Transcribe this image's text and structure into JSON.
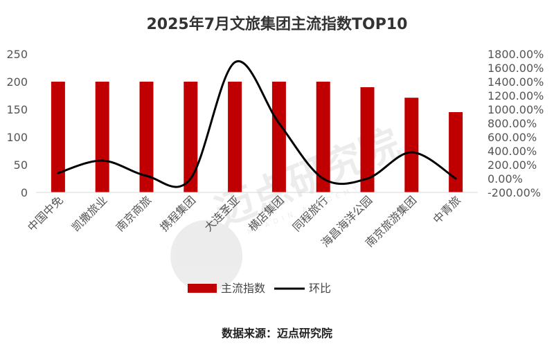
{
  "chart_data": {
    "type": "bar",
    "title": "2025年7月文旅集团主流指数TOP10",
    "categories": [
      "中国中免",
      "凯撒旅业",
      "南京商旅",
      "携程集团",
      "大连圣亚",
      "横店集团",
      "同程旅行",
      "海昌海洋公园",
      "南京旅游集团",
      "中青旅"
    ],
    "series": [
      {
        "name": "主流指数",
        "type": "bar",
        "axis": "left",
        "color": "#c00000",
        "values": [
          200,
          200,
          200,
          200,
          200,
          200,
          200,
          190,
          171,
          145
        ]
      },
      {
        "name": "环比",
        "type": "line",
        "axis": "right",
        "color": "#000000",
        "values": [
          80,
          260,
          40,
          0,
          1680,
          800,
          0,
          0,
          380,
          0
        ]
      }
    ],
    "ylim_left": [
      0,
      250
    ],
    "yticks_left": [
      "0",
      "50",
      "100",
      "150",
      "200",
      "250"
    ],
    "ylim_right": [
      -200,
      1800
    ],
    "yticks_right": [
      "-200.00%",
      "0.00%",
      "200.00%",
      "400.00%",
      "600.00%",
      "800.00%",
      "1000.00%",
      "1200.00%",
      "1400.00%",
      "1600.00%",
      "1800.00%"
    ],
    "legend_position": "bottom",
    "grid": false
  },
  "watermark": {
    "text": "迈点研究院",
    "subtext": "MEADIN ACADEMY"
  },
  "source": "数据来源：迈点研究院"
}
